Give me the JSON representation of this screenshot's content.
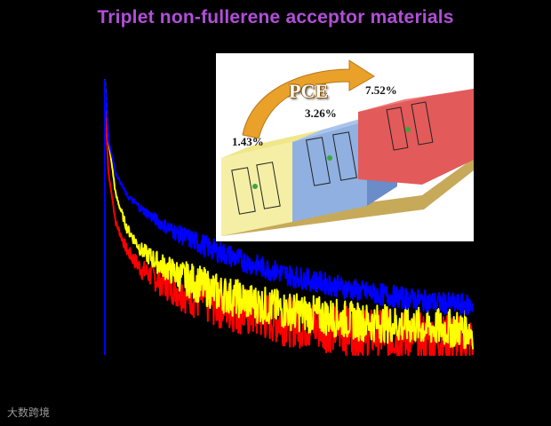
{
  "title": "Triplet non-fullerene acceptor materials",
  "chart_data": {
    "type": "line",
    "title": "Triplet non-fullerene acceptor materials",
    "xlabel": "",
    "ylabel": "",
    "axes_visible": false,
    "x": [
      0,
      0.01,
      0.03,
      0.06,
      0.1,
      0.15,
      0.2,
      0.3,
      0.4,
      0.5,
      0.6,
      0.7,
      0.8,
      0.9,
      1.0
    ],
    "ylim": [
      0,
      1
    ],
    "xlim": [
      0,
      1
    ],
    "series": [
      {
        "color": "#0000ff",
        "values": [
          1.0,
          0.78,
          0.66,
          0.58,
          0.53,
          0.48,
          0.44,
          0.38,
          0.33,
          0.29,
          0.26,
          0.23,
          0.21,
          0.19,
          0.18
        ]
      },
      {
        "color": "#ffff00",
        "values": [
          1.0,
          0.78,
          0.58,
          0.46,
          0.38,
          0.33,
          0.29,
          0.23,
          0.19,
          0.16,
          0.14,
          0.12,
          0.11,
          0.1,
          0.09
        ]
      },
      {
        "color": "#ff0000",
        "values": [
          0.92,
          0.66,
          0.48,
          0.38,
          0.31,
          0.27,
          0.24,
          0.19,
          0.15,
          0.12,
          0.1,
          0.08,
          0.07,
          0.06,
          0.05
        ]
      }
    ]
  },
  "inset": {
    "arrow_label": "PCE",
    "values": [
      "1.43%",
      "3.26%",
      "7.52%"
    ],
    "step_colors": [
      "#f5efa6",
      "#8fb0e0",
      "#e35a5a"
    ]
  },
  "watermark": "大数跨境"
}
